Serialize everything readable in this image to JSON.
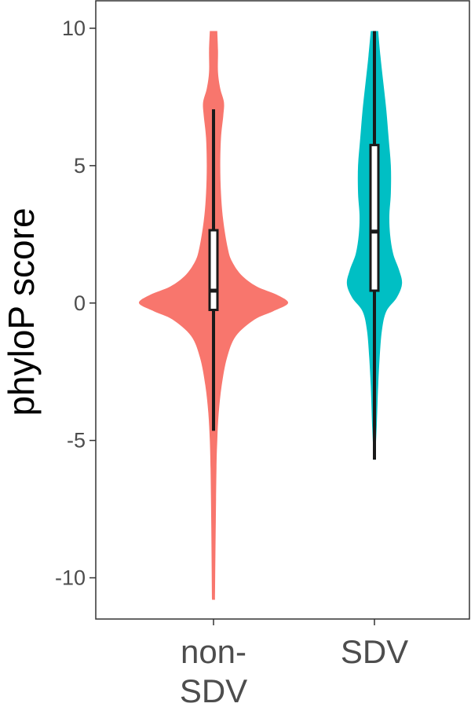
{
  "chart_data": {
    "type": "violin",
    "ylabel": "phyloP score",
    "xlabel": "",
    "ylim": [
      -11.5,
      11
    ],
    "yticks": [
      10,
      5,
      0,
      -5,
      -10
    ],
    "ytick_labels": [
      "10",
      "5",
      "0",
      "-5",
      "-10"
    ],
    "grid": false,
    "legend": "none",
    "categories": [
      {
        "key": "non-SDV",
        "label_lines": [
          "non-",
          "SDV"
        ],
        "color": "#F8766D",
        "range": [
          -10.8,
          9.9
        ],
        "box": {
          "q1": -0.25,
          "median": 0.45,
          "q3": 2.65,
          "whisker_low": -4.65,
          "whisker_high": 7.05
        },
        "density": [
          [
            -10.8,
            0.02
          ],
          [
            -8,
            0.03
          ],
          [
            -6,
            0.04
          ],
          [
            -5,
            0.05
          ],
          [
            -4,
            0.07
          ],
          [
            -3,
            0.11
          ],
          [
            -2,
            0.18
          ],
          [
            -1.2,
            0.3
          ],
          [
            -0.6,
            0.55
          ],
          [
            -0.3,
            0.8
          ],
          [
            0,
            1.0
          ],
          [
            0.3,
            0.85
          ],
          [
            0.6,
            0.58
          ],
          [
            1,
            0.38
          ],
          [
            1.5,
            0.25
          ],
          [
            2,
            0.19
          ],
          [
            3,
            0.13
          ],
          [
            4,
            0.1
          ],
          [
            5,
            0.09
          ],
          [
            6,
            0.1
          ],
          [
            6.8,
            0.13
          ],
          [
            7.3,
            0.14
          ],
          [
            7.8,
            0.09
          ],
          [
            8.4,
            0.06
          ],
          [
            9.2,
            0.06
          ],
          [
            9.9,
            0.05
          ]
        ]
      },
      {
        "key": "SDV",
        "label_lines": [
          "SDV"
        ],
        "color": "#00BFC4",
        "range": [
          -5.7,
          9.9
        ],
        "box": {
          "q1": 0.45,
          "median": 2.6,
          "q3": 5.75,
          "whisker_low": -5.7,
          "whisker_high": 9.9
        },
        "density": [
          [
            -5.7,
            0.01
          ],
          [
            -4.5,
            0.03
          ],
          [
            -3,
            0.05
          ],
          [
            -2,
            0.07
          ],
          [
            -1,
            0.1
          ],
          [
            -0.3,
            0.16
          ],
          [
            0.2,
            0.3
          ],
          [
            0.7,
            0.37
          ],
          [
            1.2,
            0.33
          ],
          [
            1.8,
            0.25
          ],
          [
            2.5,
            0.21
          ],
          [
            3.2,
            0.2
          ],
          [
            4,
            0.22
          ],
          [
            5,
            0.22
          ],
          [
            6,
            0.19
          ],
          [
            7,
            0.16
          ],
          [
            8,
            0.12
          ],
          [
            9,
            0.08
          ],
          [
            9.9,
            0.05
          ]
        ]
      }
    ]
  }
}
